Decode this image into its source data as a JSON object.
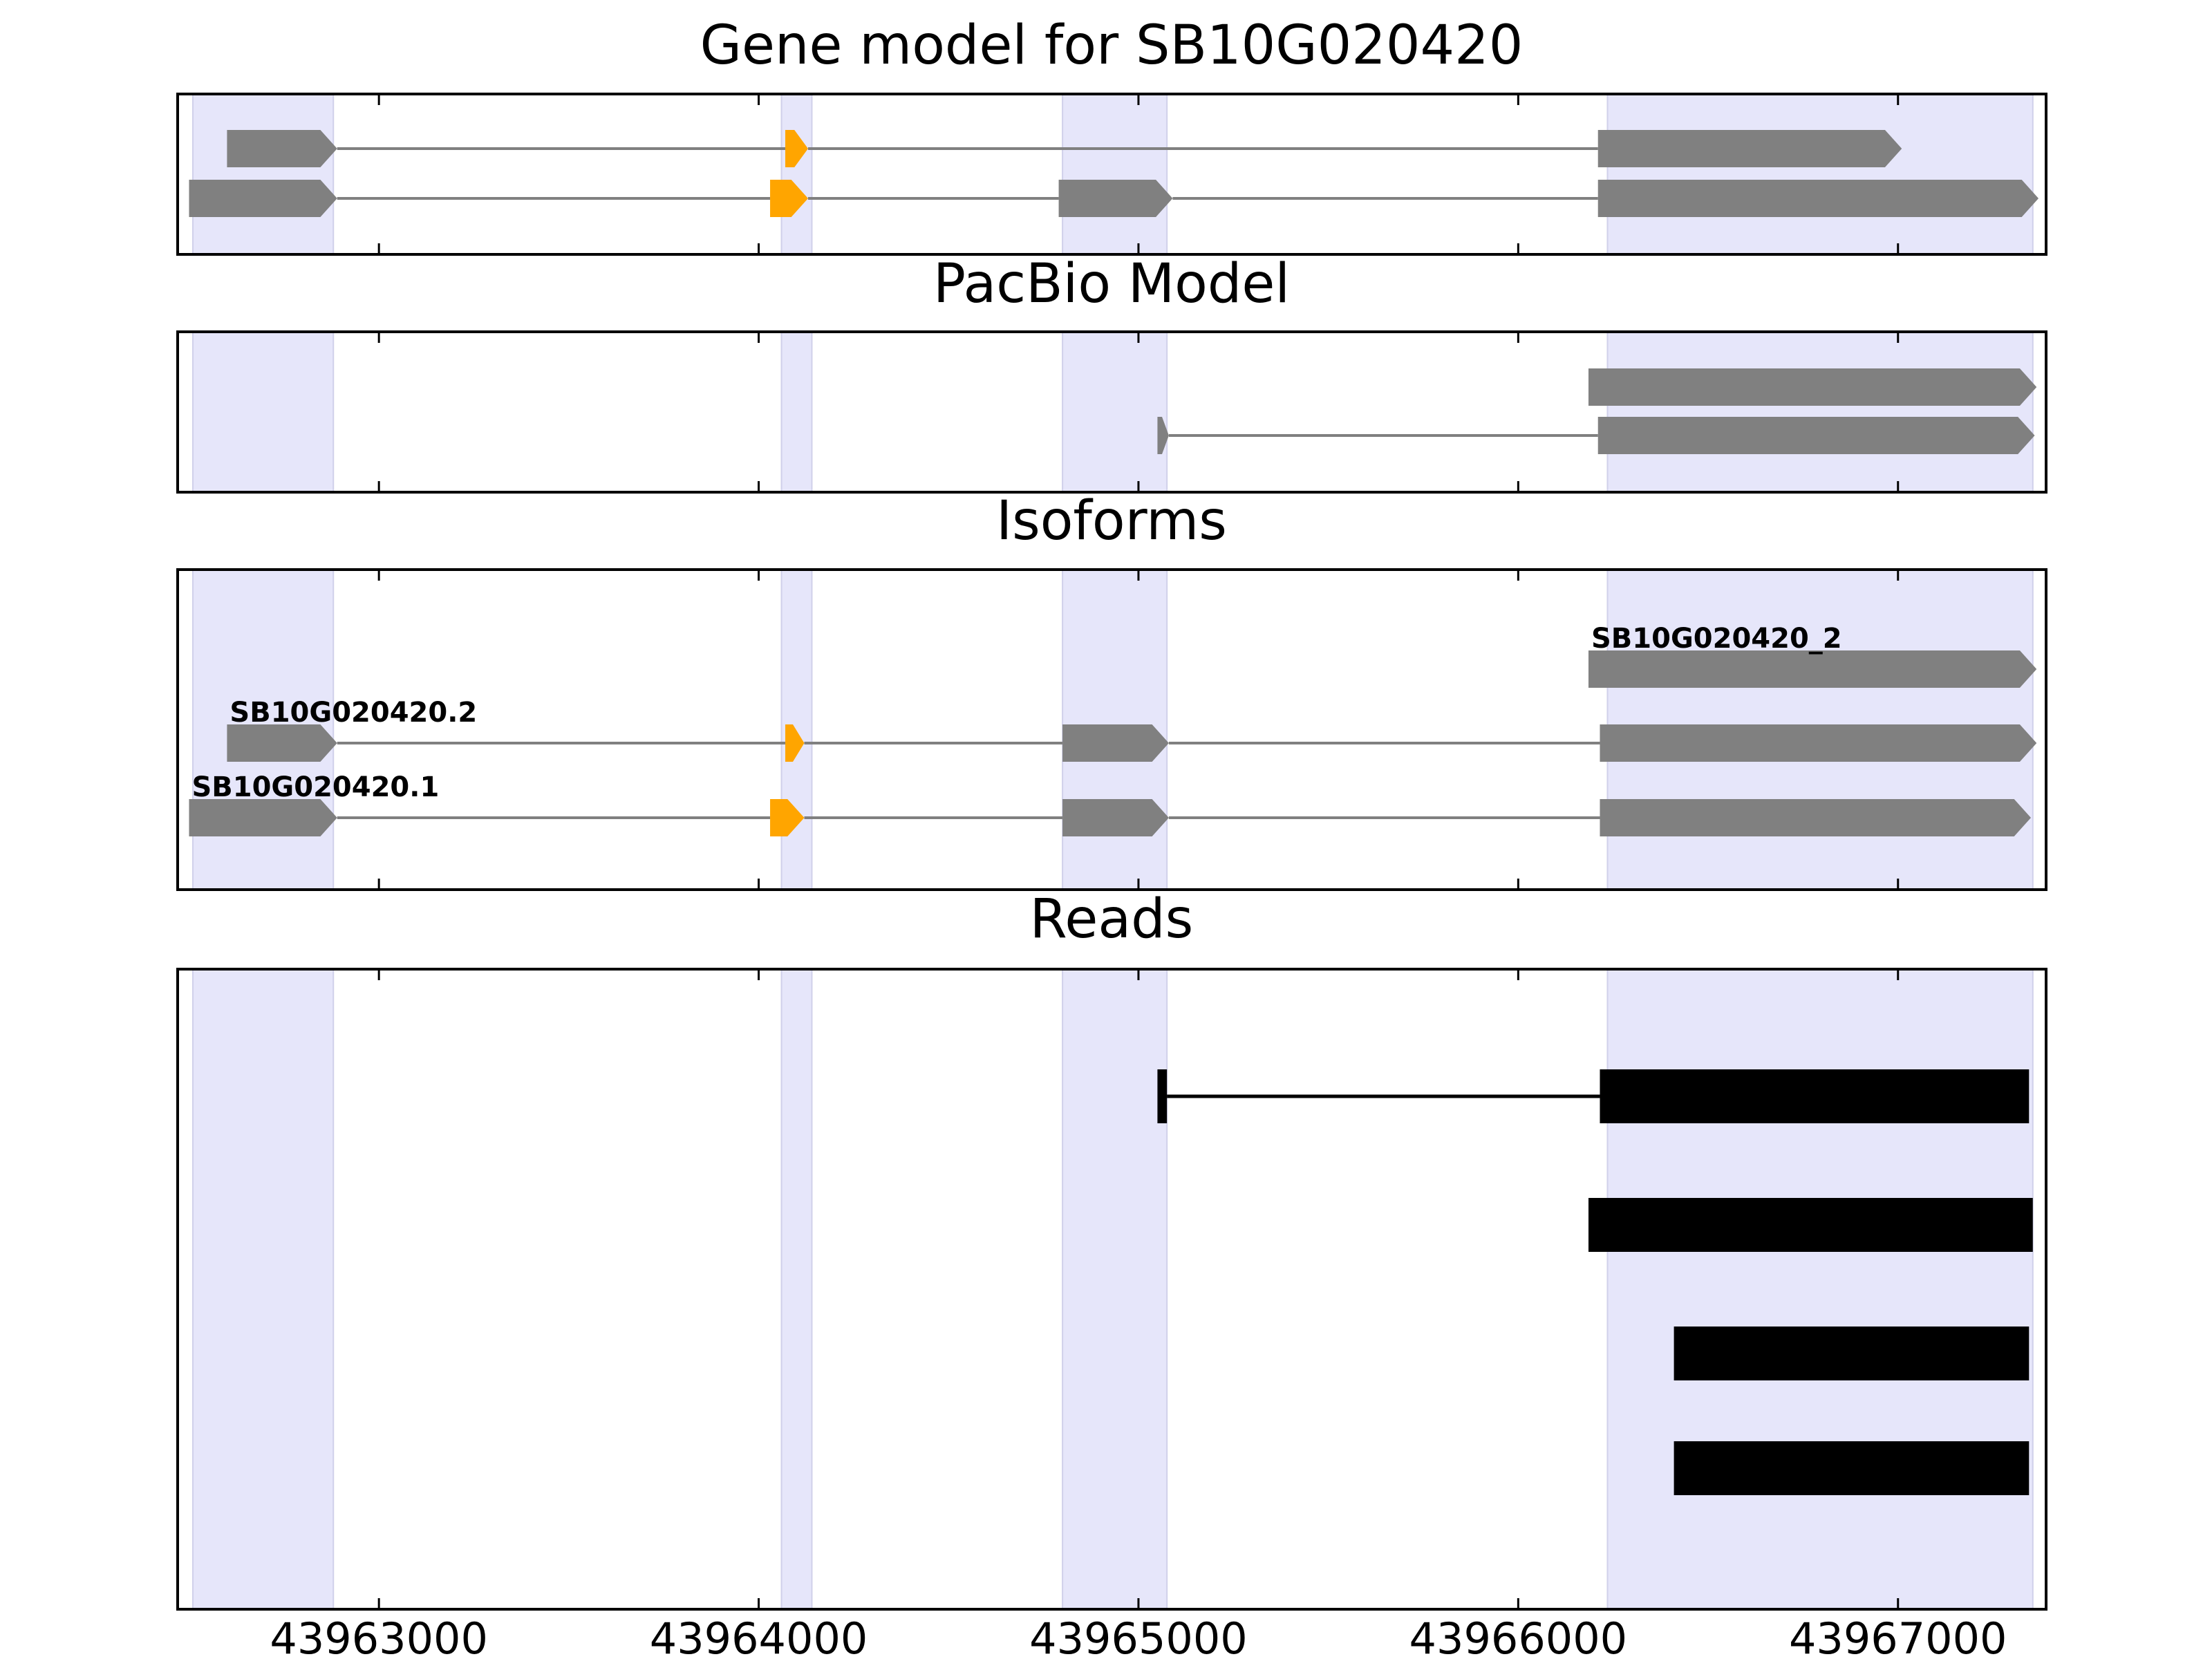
{
  "chart_data": {
    "type": "gene-model",
    "x_ticks": [
      43963000,
      43964000,
      43965000,
      43966000,
      43967000
    ],
    "x_tick_labels": [
      "43963000",
      "43964000",
      "43965000",
      "43966000",
      "43967000"
    ],
    "xlim": [
      43962470,
      43967390
    ],
    "highlight_regions": [
      [
        43962510,
        43962880
      ],
      [
        43964060,
        43964140
      ],
      [
        43964800,
        43965075
      ],
      [
        43966235,
        43967355
      ]
    ],
    "colors": {
      "feature": "#808080",
      "cds_highlight": "#ffa500",
      "region": "#e6e6fa",
      "read": "#000000",
      "intron": "#808080"
    },
    "panels": [
      {
        "title": "Gene model for SB10G020420",
        "tracks": [
          {
            "label": "",
            "blocks": [
              {
                "start": 43962600,
                "end": 43962890,
                "color": "feature"
              },
              {
                "start": 43964070,
                "end": 43964130,
                "color": "cds_highlight"
              },
              {
                "start": 43966210,
                "end": 43967010,
                "color": "feature"
              }
            ]
          },
          {
            "label": "",
            "blocks": [
              {
                "start": 43962500,
                "end": 43962890,
                "color": "feature"
              },
              {
                "start": 43964030,
                "end": 43964130,
                "color": "cds_highlight"
              },
              {
                "start": 43964790,
                "end": 43965090,
                "color": "feature"
              },
              {
                "start": 43966210,
                "end": 43967370,
                "color": "feature"
              }
            ]
          }
        ]
      },
      {
        "title": "PacBio Model",
        "tracks": [
          {
            "label": "",
            "blocks": [
              {
                "start": 43966185,
                "end": 43967365,
                "color": "feature"
              }
            ]
          },
          {
            "label": "",
            "blocks": [
              {
                "start": 43965050,
                "end": 43965080,
                "color": "feature"
              },
              {
                "start": 43966210,
                "end": 43967360,
                "color": "feature"
              }
            ]
          }
        ]
      },
      {
        "title": "Isoforms",
        "tracks": [
          {
            "label": "SB10G020420_2",
            "blocks": [
              {
                "start": 43966185,
                "end": 43967365,
                "color": "feature"
              }
            ]
          },
          {
            "label": "SB10G020420.2",
            "blocks": [
              {
                "start": 43962600,
                "end": 43962890,
                "color": "feature"
              },
              {
                "start": 43964070,
                "end": 43964120,
                "color": "cds_highlight"
              },
              {
                "start": 43964800,
                "end": 43965080,
                "color": "feature"
              },
              {
                "start": 43966215,
                "end": 43967365,
                "color": "feature"
              }
            ]
          },
          {
            "label": "SB10G020420.1",
            "blocks": [
              {
                "start": 43962500,
                "end": 43962890,
                "color": "feature"
              },
              {
                "start": 43964030,
                "end": 43964120,
                "color": "cds_highlight"
              },
              {
                "start": 43964800,
                "end": 43965080,
                "color": "feature"
              },
              {
                "start": 43966215,
                "end": 43967350,
                "color": "feature"
              }
            ]
          }
        ]
      },
      {
        "title": "Reads",
        "reads": [
          {
            "blocks": [
              [
                43965050,
                43965075
              ],
              [
                43966215,
                43967345
              ]
            ]
          },
          {
            "blocks": [
              [
                43966185,
                43967355
              ]
            ]
          },
          {
            "blocks": [
              [
                43966410,
                43967345
              ]
            ]
          },
          {
            "blocks": [
              [
                43966410,
                43967345
              ]
            ]
          }
        ]
      }
    ]
  }
}
